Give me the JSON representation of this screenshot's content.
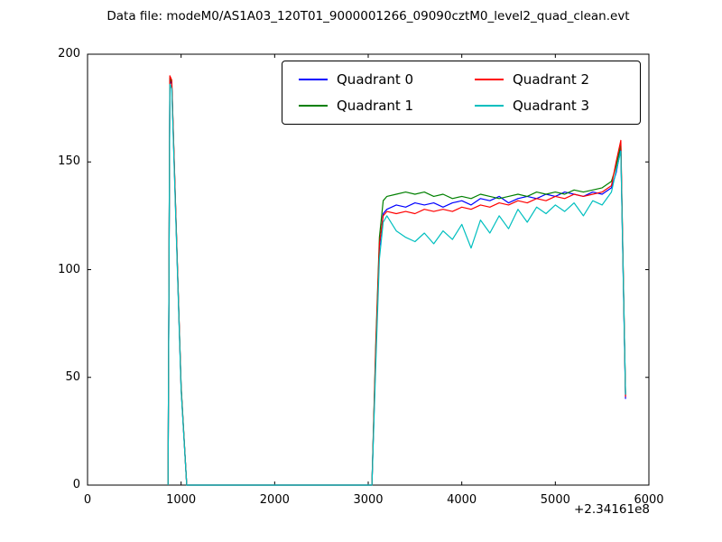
{
  "title": "Data file: modeM0/AS1A03_120T01_9000001266_09090cztM0_level2_quad_clean.evt",
  "chart_data": {
    "type": "line",
    "title": "Data file: modeM0/AS1A03_120T01_9000001266_09090cztM0_level2_quad_clean.evt",
    "xlabel": "",
    "ylabel": "",
    "xlim": [
      0,
      6000
    ],
    "ylim": [
      0,
      200
    ],
    "xticks": [
      0,
      1000,
      2000,
      3000,
      4000,
      5000,
      6000
    ],
    "yticks": [
      0,
      50,
      100,
      150,
      200
    ],
    "x_offset_label": "+2.34161e8",
    "grid": false,
    "legend_position": "upper center, 2 columns, inside axes",
    "x": [
      860,
      880,
      900,
      1000,
      1060,
      1500,
      2000,
      2500,
      3040,
      3080,
      3120,
      3160,
      3200,
      3300,
      3400,
      3500,
      3600,
      3700,
      3800,
      3900,
      4000,
      4100,
      4200,
      4300,
      4400,
      4500,
      4600,
      4700,
      4800,
      4900,
      5000,
      5100,
      5200,
      5300,
      5400,
      5500,
      5600,
      5650,
      5700,
      5750
    ],
    "series": [
      {
        "name": "Quadrant 0",
        "color": "#0000ff",
        "values": [
          0,
          188,
          186,
          45,
          0,
          0,
          0,
          0,
          0,
          60,
          110,
          126,
          128,
          130,
          129,
          131,
          130,
          131,
          129,
          131,
          132,
          130,
          133,
          132,
          134,
          131,
          133,
          134,
          133,
          135,
          134,
          136,
          135,
          134,
          136,
          135,
          138,
          145,
          156,
          40
        ]
      },
      {
        "name": "Quadrant 1",
        "color": "#008000",
        "values": [
          0,
          189,
          187,
          46,
          0,
          0,
          0,
          0,
          0,
          65,
          115,
          132,
          134,
          135,
          136,
          135,
          136,
          134,
          135,
          133,
          134,
          133,
          135,
          134,
          133,
          134,
          135,
          134,
          136,
          135,
          136,
          135,
          137,
          136,
          137,
          138,
          141,
          148,
          158,
          42
        ]
      },
      {
        "name": "Quadrant 2",
        "color": "#ff0000",
        "values": [
          0,
          190,
          188,
          45,
          0,
          0,
          0,
          0,
          0,
          62,
          112,
          125,
          127,
          126,
          127,
          126,
          128,
          127,
          128,
          127,
          129,
          128,
          130,
          129,
          131,
          130,
          132,
          131,
          133,
          132,
          134,
          133,
          135,
          134,
          135,
          136,
          139,
          150,
          160,
          41
        ]
      },
      {
        "name": "Quadrant 3",
        "color": "#00bfbf",
        "values": [
          0,
          186,
          184,
          44,
          0,
          0,
          0,
          0,
          0,
          55,
          105,
          122,
          125,
          118,
          115,
          113,
          117,
          112,
          118,
          114,
          121,
          110,
          123,
          117,
          125,
          119,
          128,
          122,
          129,
          126,
          130,
          127,
          131,
          125,
          132,
          130,
          136,
          146,
          155,
          42
        ]
      }
    ]
  },
  "layout_colors": {
    "background": "#ffffff",
    "axes_frame": "#000000",
    "text": "#000000"
  }
}
